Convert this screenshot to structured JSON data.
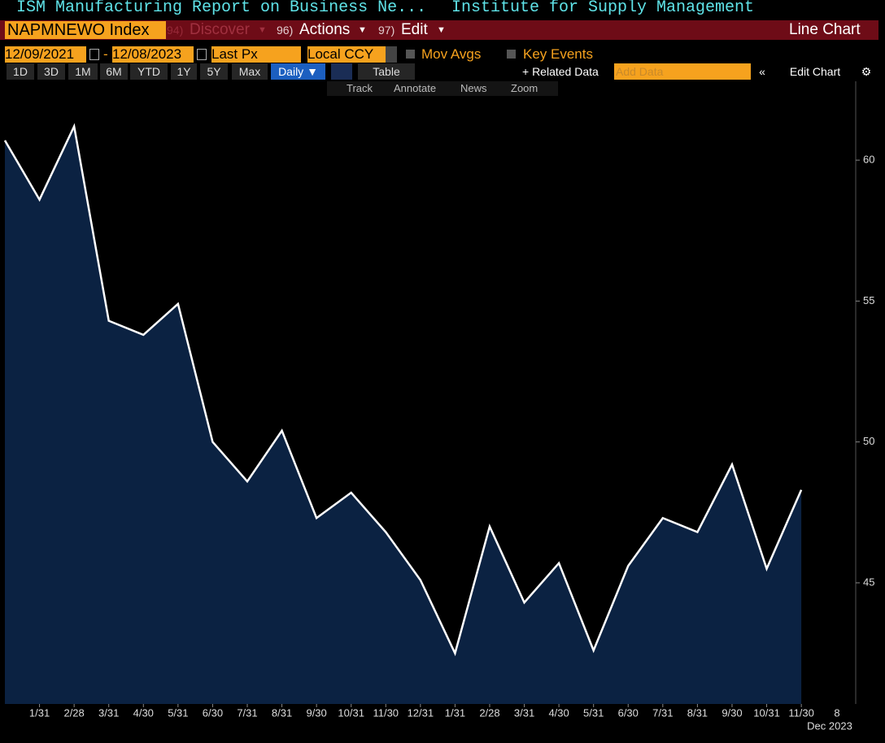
{
  "ui": {
    "title": "ISM Manufacturing Report on Business Ne...",
    "source": "Institute for Supply Management",
    "ticker": "NAPMNEWO Index",
    "menu": [
      {
        "num": "94)",
        "label": "Discover"
      },
      {
        "num": "96)",
        "label": "Actions"
      },
      {
        "num": "97)",
        "label": "Edit"
      }
    ],
    "view": "Line Chart",
    "start_date": "12/09/2021",
    "date_sep": "-",
    "end_date": "12/08/2023",
    "field": "Last Px",
    "currency": "Local CCY",
    "mov_avgs": "Mov Avgs",
    "key_events": "Key Events",
    "ranges": [
      "1D",
      "3D",
      "1M",
      "6M",
      "YTD",
      "1Y",
      "5Y",
      "Max"
    ],
    "frequency": "Daily ▼",
    "table": "Table",
    "related": "+ Related Data",
    "add_data": "Add Data",
    "edit_chart": "Edit Chart",
    "tools": [
      "Track",
      "Annotate",
      "News",
      "Zoom"
    ],
    "x_axis_end": "8",
    "x_axis_period": "Dec 2023"
  },
  "chart_data": {
    "type": "area",
    "categories": [
      null,
      "1/31",
      "2/28",
      "3/31",
      "4/30",
      "5/31",
      "6/30",
      "7/31",
      "8/31",
      "9/30",
      "10/31",
      "11/30",
      "12/31",
      "1/31",
      "2/28",
      "3/31",
      "4/30",
      "5/31",
      "6/30",
      "7/31",
      "8/31",
      "9/30",
      "10/31",
      "11/30"
    ],
    "series": [
      {
        "name": "NAPMNEWO Index",
        "color": "#ffffff",
        "fill": "#0b2242",
        "values": [
          60.7,
          58.6,
          61.2,
          54.3,
          53.8,
          54.9,
          50.0,
          48.6,
          50.4,
          47.3,
          48.2,
          46.8,
          45.1,
          42.5,
          47.0,
          44.3,
          45.7,
          42.6,
          45.6,
          47.3,
          46.8,
          49.2,
          45.5,
          48.3
        ]
      }
    ],
    "ylim": [
      40.7,
      62.8
    ],
    "yticks": [
      45,
      50,
      55,
      60
    ]
  }
}
